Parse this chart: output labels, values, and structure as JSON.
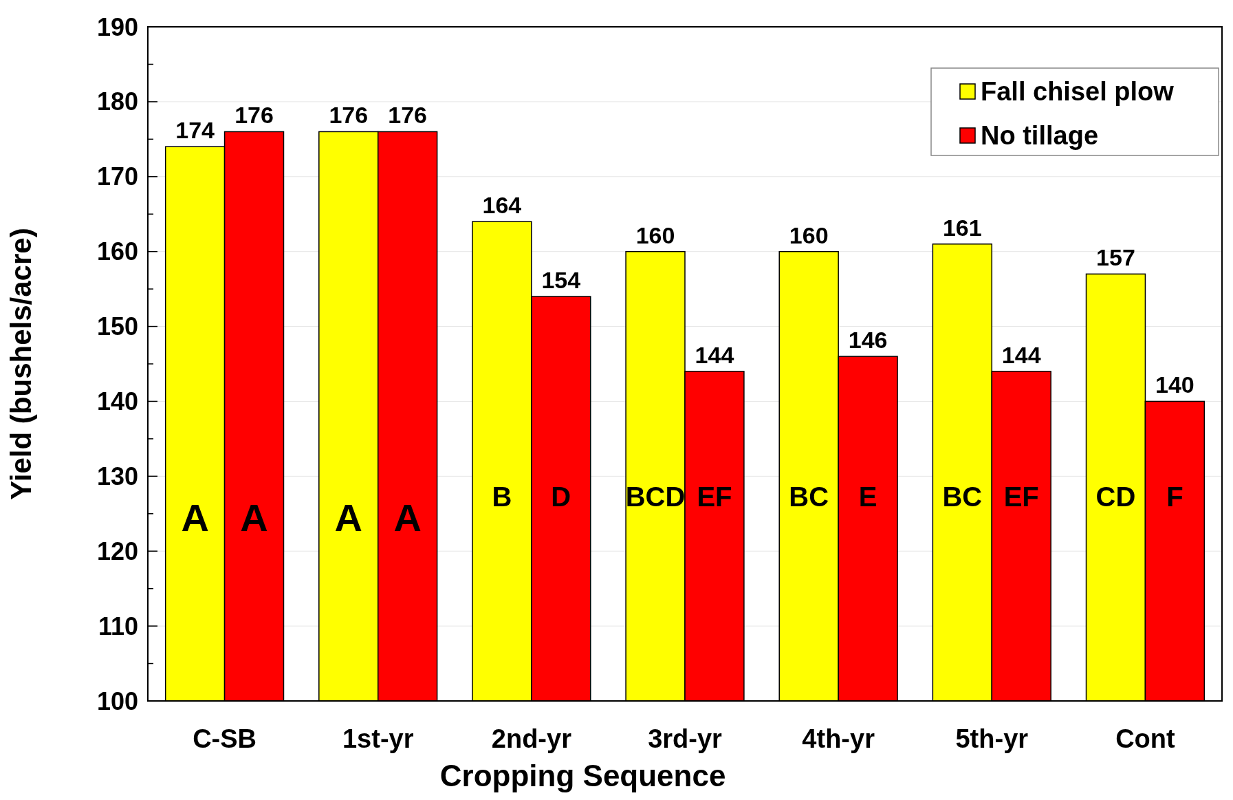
{
  "chart_data": {
    "type": "bar",
    "xlabel": "Cropping Sequence",
    "ylabel": "Yield (bushels/acre)",
    "categories": [
      "C-SB",
      "1st-yr",
      "2nd-yr",
      "3rd-yr",
      "4th-yr",
      "5th-yr",
      "Cont"
    ],
    "series": [
      {
        "name": "Fall chisel plow",
        "color": "#ffff00",
        "values": [
          174,
          176,
          164,
          160,
          160,
          161,
          157
        ]
      },
      {
        "name": "No tillage",
        "color": "#ff0000",
        "values": [
          176,
          176,
          154,
          144,
          146,
          144,
          140
        ]
      }
    ],
    "data_labels": true,
    "ylim": [
      100,
      190
    ],
    "yticks": [
      100,
      {
        "value": 105,
        "label": null
      },
      110,
      {
        "value": 115,
        "label": null
      },
      120,
      {
        "value": 125,
        "label": null
      },
      130,
      {
        "value": 135,
        "label": null
      },
      140,
      {
        "value": 145,
        "label": null
      },
      150,
      {
        "value": 155,
        "label": null
      },
      160,
      {
        "value": 165,
        "label": null
      },
      170,
      {
        "value": 175,
        "label": null
      },
      180,
      {
        "value": 185,
        "label": null
      },
      190
    ],
    "grid": "y",
    "legend": "top right",
    "annotations": [
      {
        "text": "A",
        "x": "C-SB",
        "y": 124
      },
      {
        "text": "A",
        "x": "C-SB",
        "y": 124
      },
      {
        "text": "A",
        "x": "1st-yr",
        "y": 124
      },
      {
        "text": "A",
        "x": "1st-yr",
        "y": 124
      },
      {
        "text": "B",
        "x": "2nd-yr",
        "y": 127
      },
      {
        "text": "D",
        "x": "2nd-yr",
        "y": 127
      },
      {
        "text": "BCD",
        "x": "3rd-yr",
        "y": 127
      },
      {
        "text": "EF",
        "x": "3rd-yr",
        "y": 127
      },
      {
        "text": "BC",
        "x": "4th-yr",
        "y": 127
      },
      {
        "text": "E",
        "x": "4th-yr",
        "y": 127
      },
      {
        "text": "BC",
        "x": "5th-yr",
        "y": 127
      },
      {
        "text": "EF",
        "x": "5th-yr",
        "y": 127
      },
      {
        "text": "CD",
        "x": "Cont",
        "y": 127
      },
      {
        "text": "F",
        "x": "Cont",
        "y": 127
      }
    ]
  }
}
